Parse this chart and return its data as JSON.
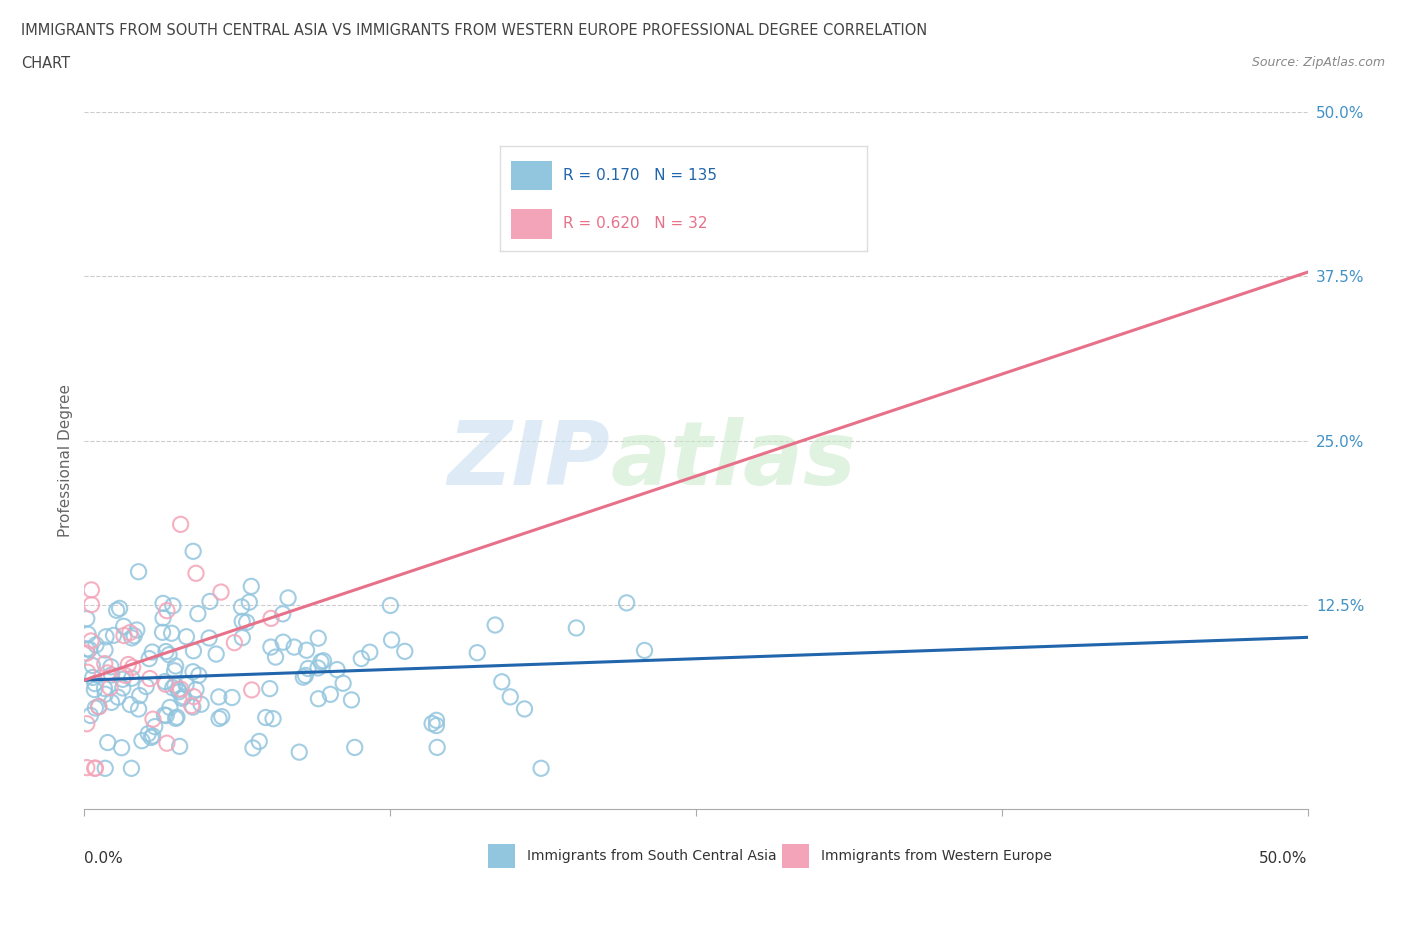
{
  "title_line1": "IMMIGRANTS FROM SOUTH CENTRAL ASIA VS IMMIGRANTS FROM WESTERN EUROPE PROFESSIONAL DEGREE CORRELATION",
  "title_line2": "CHART",
  "source": "Source: ZipAtlas.com",
  "R_blue": 0.17,
  "N_blue": 135,
  "R_pink": 0.62,
  "N_pink": 32,
  "color_blue": "#92c5de",
  "color_pink": "#f4a4b8",
  "trendline_blue": "#2166ac",
  "trendline_pink": "#e8718a",
  "ylabel": "Professional Degree",
  "xmin": 0.0,
  "xmax": 0.5,
  "ymin": -0.03,
  "ymax": 0.5,
  "grid_color": "#cccccc",
  "background_color": "#ffffff",
  "watermark_zip": "ZIP",
  "watermark_atlas": "atlas",
  "legend_label_blue": "Immigrants from South Central Asia",
  "legend_label_pink": "Immigrants from Western Europe",
  "blue_trend_slope": 0.065,
  "blue_trend_intercept": 0.068,
  "pink_trend_slope": 0.62,
  "pink_trend_intercept": 0.068,
  "seed": 7
}
